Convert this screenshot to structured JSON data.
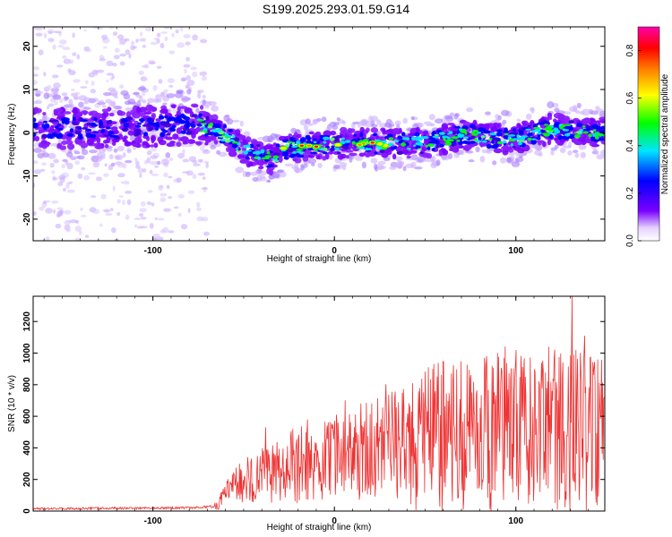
{
  "title": "S199.2025.293.01.59.G14",
  "chart_data": [
    {
      "type": "heatmap",
      "title": "S199.2025.293.01.59.G14",
      "xlabel": "Height of straight line (km)",
      "ylabel": "Frequency (Hz)",
      "xlim": [
        -166,
        149
      ],
      "ylim": [
        -25,
        24.5
      ],
      "xticks": [
        -100,
        0,
        100
      ],
      "yticks": [
        -20,
        -10,
        0,
        10,
        20
      ],
      "ridge_center_hz": [
        {
          "x": -166,
          "f": 1
        },
        {
          "x": -120,
          "f": 1
        },
        {
          "x": -75,
          "f": 2
        },
        {
          "x": -62,
          "f": 0
        },
        {
          "x": -50,
          "f": -4
        },
        {
          "x": -35,
          "f": -6
        },
        {
          "x": -25,
          "f": -3.5
        },
        {
          "x": 0,
          "f": -2.5
        },
        {
          "x": 20,
          "f": -2.5
        },
        {
          "x": 50,
          "f": -2.5
        },
        {
          "x": 70,
          "f": -0.5
        },
        {
          "x": 100,
          "f": -1.5
        },
        {
          "x": 120,
          "f": 1
        },
        {
          "x": 149,
          "f": 0
        }
      ],
      "colorbar": {
        "label": "Normalized spectral amplitude",
        "range": [
          0.0,
          0.9
        ],
        "ticks": [
          0.0,
          0.2,
          0.4,
          0.6,
          0.8
        ],
        "colors": [
          "#ffffff",
          "#7a00ff",
          "#0000ff",
          "#00e5ff",
          "#00ff00",
          "#ffff00",
          "#ff8000",
          "#ff0000",
          "#ff00aa"
        ]
      }
    },
    {
      "type": "line",
      "xlabel": "Height of straight line (km)",
      "ylabel": "SNR (10 * v/v)",
      "xlim": [
        -166,
        149
      ],
      "ylim": [
        0,
        1360
      ],
      "xticks": [
        -100,
        0,
        100
      ],
      "yticks": [
        0,
        200,
        400,
        600,
        800,
        1000,
        1200
      ],
      "series": [
        {
          "name": "SNR",
          "color": "#ee3333",
          "trend": [
            {
              "x": -166,
              "y": 15
            },
            {
              "x": -80,
              "y": 20
            },
            {
              "x": -65,
              "y": 30
            },
            {
              "x": -55,
              "y": 180
            },
            {
              "x": -40,
              "y": 240
            },
            {
              "x": -20,
              "y": 300
            },
            {
              "x": 0,
              "y": 370
            },
            {
              "x": 20,
              "y": 420
            },
            {
              "x": 40,
              "y": 480
            },
            {
              "x": 60,
              "y": 520
            },
            {
              "x": 80,
              "y": 540
            },
            {
              "x": 100,
              "y": 560
            },
            {
              "x": 120,
              "y": 560
            },
            {
              "x": 149,
              "y": 560
            }
          ],
          "peaks": [
            {
              "x": -38,
              "y": 530
            },
            {
              "x": 32,
              "y": 640
            },
            {
              "x": 100,
              "y": 1020
            },
            {
              "x": 118,
              "y": 1040
            },
            {
              "x": 131,
              "y": 1360
            },
            {
              "x": 138,
              "y": 1110
            },
            {
              "x": 145,
              "y": 960
            }
          ]
        }
      ]
    }
  ]
}
